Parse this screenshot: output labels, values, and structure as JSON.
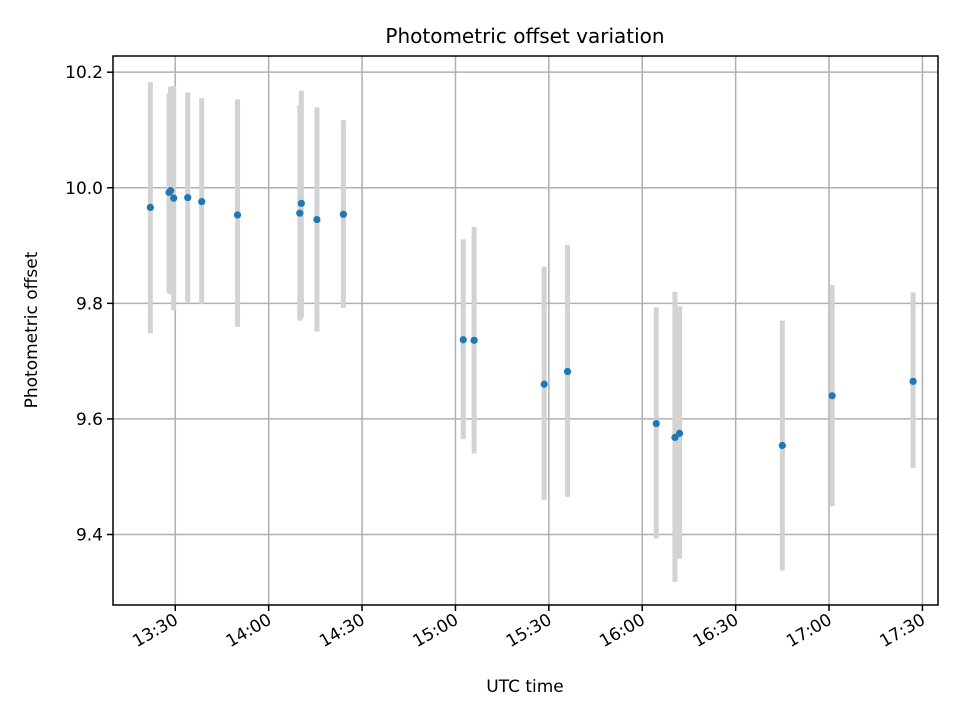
{
  "chart_data": {
    "type": "scatter",
    "title": "Photometric offset variation",
    "xlabel": "UTC time",
    "ylabel": "Photometric offset",
    "xlim": [
      "13:10",
      "17:35"
    ],
    "ylim": [
      9.278,
      10.228
    ],
    "x_ticks": [
      "13:30",
      "14:00",
      "14:30",
      "15:00",
      "15:30",
      "16:00",
      "16:30",
      "17:00",
      "17:30"
    ],
    "y_ticks": [
      9.4,
      9.6,
      9.8,
      10.0,
      10.2
    ],
    "y_tick_labels": [
      "9.4",
      "9.6",
      "9.8",
      "10.0",
      "10.2"
    ],
    "grid": true,
    "marker_color": "#1f77b4",
    "errorbar_color": "#d3d3d3",
    "points": [
      {
        "x": "13:22",
        "y": 9.966,
        "ylo": 9.748,
        "yhi": 10.183
      },
      {
        "x": "13:28",
        "y": 9.992,
        "ylo": 9.818,
        "yhi": 10.163
      },
      {
        "x": "13:28.5",
        "y": 9.995,
        "ylo": 9.816,
        "yhi": 10.175
      },
      {
        "x": "13:29.5",
        "y": 9.982,
        "ylo": 9.788,
        "yhi": 10.176
      },
      {
        "x": "13:34",
        "y": 9.983,
        "ylo": 9.802,
        "yhi": 10.165
      },
      {
        "x": "13:38.5",
        "y": 9.976,
        "ylo": 9.799,
        "yhi": 10.155
      },
      {
        "x": "13:50",
        "y": 9.953,
        "ylo": 9.759,
        "yhi": 10.153
      },
      {
        "x": "14:10",
        "y": 9.956,
        "ylo": 9.77,
        "yhi": 10.143
      },
      {
        "x": "14:10.5",
        "y": 9.973,
        "ylo": 9.775,
        "yhi": 10.168
      },
      {
        "x": "14:15.5",
        "y": 9.945,
        "ylo": 9.751,
        "yhi": 10.139
      },
      {
        "x": "14:24",
        "y": 9.954,
        "ylo": 9.792,
        "yhi": 10.117
      },
      {
        "x": "15:02.5",
        "y": 9.737,
        "ylo": 9.565,
        "yhi": 9.911
      },
      {
        "x": "15:06",
        "y": 9.736,
        "ylo": 9.54,
        "yhi": 9.932
      },
      {
        "x": "15:28.5",
        "y": 9.66,
        "ylo": 9.46,
        "yhi": 9.863
      },
      {
        "x": "15:36",
        "y": 9.682,
        "ylo": 9.465,
        "yhi": 9.901
      },
      {
        "x": "16:04.5",
        "y": 9.592,
        "ylo": 9.393,
        "yhi": 9.793
      },
      {
        "x": "16:10.5",
        "y": 9.568,
        "ylo": 9.318,
        "yhi": 9.82
      },
      {
        "x": "16:12",
        "y": 9.575,
        "ylo": 9.358,
        "yhi": 9.795
      },
      {
        "x": "16:45",
        "y": 9.554,
        "ylo": 9.338,
        "yhi": 9.77
      },
      {
        "x": "17:01",
        "y": 9.64,
        "ylo": 9.449,
        "yhi": 9.832
      },
      {
        "x": "17:27",
        "y": 9.665,
        "ylo": 9.515,
        "yhi": 9.819
      }
    ]
  }
}
